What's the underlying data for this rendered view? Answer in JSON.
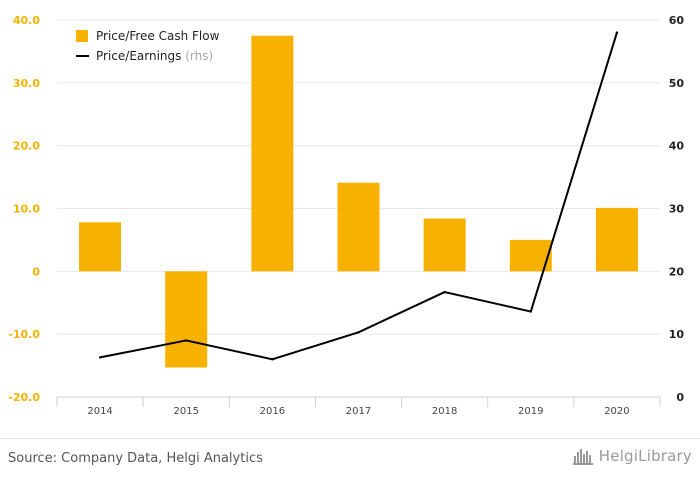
{
  "chart_data": {
    "type": "bar+line",
    "categories": [
      "2014",
      "2015",
      "2016",
      "2017",
      "2018",
      "2019",
      "2020"
    ],
    "series": [
      {
        "name": "Price/Free Cash Flow",
        "type": "bar",
        "axis": "left",
        "color": "#f7b100",
        "values": [
          7.8,
          -15.3,
          37.5,
          14.1,
          8.4,
          5.0,
          10.1
        ]
      },
      {
        "name": "Price/Earnings",
        "name_suffix": "(rhs)",
        "type": "line",
        "axis": "right",
        "color": "#000000",
        "values": [
          6.3,
          9.0,
          6.0,
          10.3,
          16.7,
          13.6,
          58.0
        ]
      }
    ],
    "y_left": {
      "ylim": [
        -20,
        40
      ],
      "ticks": [
        40,
        30,
        20,
        10,
        0,
        -10,
        -20
      ],
      "tick_labels": [
        "40.0",
        "30.0",
        "20.0",
        "10.0",
        "0",
        "-10.0",
        "-20.0"
      ],
      "label_color": "#f7b100"
    },
    "y_right": {
      "ylim": [
        0,
        60
      ],
      "ticks": [
        60,
        50,
        40,
        30,
        20,
        10,
        0
      ],
      "tick_labels": [
        "60",
        "50",
        "40",
        "30",
        "20",
        "10",
        "0"
      ]
    },
    "grid": true,
    "legend_position": "top-left"
  },
  "footer": {
    "source": "Source: Company Data, Helgi Analytics",
    "brand": "HelgiLibrary",
    "brand_icon": "helgi-library-logo-icon"
  }
}
